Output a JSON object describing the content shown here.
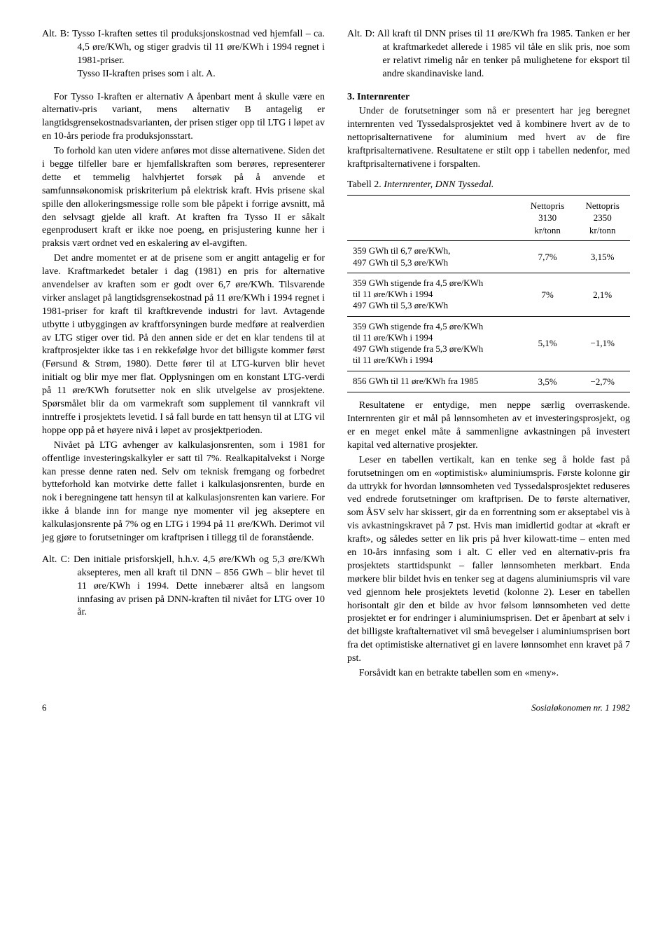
{
  "left": {
    "altB_l1": "Alt. B: Tysso I-kraften settes til produksjonskostnad ved hjemfall – ca. 4,5 øre/KWh, og stiger gradvis til 11 øre/KWh i 1994 regnet i 1981-priser.",
    "altB_l2": "Tysso II-kraften prises som i alt. A.",
    "p1": "For Tysso I-kraften er alternativ A åpenbart ment å skulle være en alternativ-pris variant, mens alternativ B antagelig er langtidsgrensekostnadsvarianten, der prisen stiger opp til LTG i løpet av en 10-års periode fra produksjonsstart.",
    "p2": "To forhold kan uten videre anføres mot disse alternativene. Siden det i begge tilfeller bare er hjemfallskraften som berøres, representerer dette et temmelig halvhjertet forsøk på å anvende et samfunnsøkonomisk priskriterium på elektrisk kraft. Hvis prisene skal spille den allokeringsmessige rolle som ble påpekt i forrige avsnitt, må den selvsagt gjelde all kraft. At kraften fra Tysso II er såkalt egenprodusert kraft er ikke noe poeng, en prisjustering kunne her i praksis vært ordnet ved en eskalering av el-avgiften.",
    "p3": "Det andre momentet er at de prisene som er angitt antagelig er for lave. Kraftmarkedet betaler i dag (1981) en pris for alternative anvendelser av kraften som er godt over 6,7 øre/KWh. Tilsvarende virker anslaget på langtidsgrensekostnad på 11 øre/KWh i 1994 regnet i 1981-priser for kraft til kraftkrevende industri for lavt. Avtagende utbytte i utbyggingen av kraftforsyningen burde medføre at realverdien av LTG stiger over tid. På den annen side er det en klar tendens til at kraftprosjekter ikke tas i en rekkefølge hvor det billigste kommer først (Førsund & Strøm, 1980). Dette fører til at LTG-kurven blir hevet initialt og blir mye mer flat. Opplysningen om en konstant LTG-verdi på 11 øre/KWh forutsetter nok en slik utvelgelse av prosjektene. Spørsmålet blir da om varmekraft som supplement til vannkraft vil inntreffe i prosjektets levetid. I så fall burde en tatt hensyn til at LTG vil hoppe opp på et høyere nivå i løpet av prosjektperioden.",
    "p4": "Nivået på LTG avhenger av kalkulasjonsrenten, som i 1981 for offentlige investeringskalkyler er satt til 7%. Realkapitalvekst i Norge kan presse denne raten ned. Selv om teknisk fremgang og forbedret bytteforhold kan motvirke dette fallet i kalkulasjonsrenten, burde en nok i beregningene tatt hensyn til at kalkulasjonsrenten kan variere. For ikke å blande inn for mange nye momenter vil jeg akseptere en kalkulasjonsrente på 7% og en LTG i 1994 på 11 øre/KWh. Derimot vil jeg gjøre to forutsetninger om kraftprisen i tillegg til de foranstående.",
    "altC": "Alt. C: Den initiale prisforskjell, h.h.v. 4,5 øre/KWh og 5,3 øre/KWh aksepteres, men all kraft til DNN – 856 GWh – blir hevet til 11 øre/KWh i 1994. Dette innebærer altså en langsom innfasing av prisen på DNN-kraften til nivået for LTG over 10 år."
  },
  "right": {
    "altD": "Alt. D: All kraft til DNN prises til 11 øre/KWh fra 1985. Tanken er her at kraftmarkedet allerede i 1985 vil tåle en slik pris, noe som er relativt rimelig når en tenker på mulighetene for eksport til andre skandinaviske land.",
    "h3": "3. Internrenter",
    "p1": "Under de forutsetninger som nå er presentert har jeg beregnet internrenten ved Tyssedalsprosjektet ved å kombinere hvert av de to nettoprisalternativene for aluminium med hvert av de fire kraftprisalternativene. Resultatene er stilt opp i tabellen nedenfor, med kraftprisalternativene i forspalten.",
    "table_caption_num": "Tabell 2.",
    "table_caption_title": "Internrenter, DNN Tyssedal.",
    "th_blank": "",
    "th_c1_l1": "Nettopris",
    "th_c1_l2": "3130",
    "th_c1_l3": "kr/tonn",
    "th_c2_l1": "Nettopris",
    "th_c2_l2": "2350",
    "th_c2_l3": "kr/tonn",
    "r1_d": "359 GWh til 6,7 øre/KWh,\n497 GWh til 5,3 øre/KWh",
    "r1_c1": "7,7%",
    "r1_c2": "3,15%",
    "r2_d": "359 GWh stigende fra 4,5 øre/KWh\n        til 11 øre/KWh i 1994\n497 GWh til 5,3 øre/KWh",
    "r2_c1": "7%",
    "r2_c2": "2,1%",
    "r3_d": "359 GWh stigende fra 4,5 øre/KWh\n        til 11 øre/KWh i 1994\n497 GWh stigende fra 5,3 øre/KWh\n        til 11 øre/KWh i 1994",
    "r3_c1": "5,1%",
    "r3_c2": "−1,1%",
    "r4_d": "856 GWh til 11 øre/KWh fra 1985",
    "r4_c1": "3,5%",
    "r4_c2": "−2,7%",
    "p2": "Resultatene er entydige, men neppe særlig overraskende. Internrenten gir et mål på lønnsomheten av et investeringsprosjekt, og er en meget enkel måte å sammenligne avkastningen på investert kapital ved alternative prosjekter.",
    "p3": "Leser en tabellen vertikalt, kan en tenke seg å holde fast på forutsetningen om en «optimistisk» aluminiumspris. Første kolonne gir da uttrykk for hvordan lønnsomheten ved Tyssedalsprosjektet reduseres ved endrede forutsetninger om kraftprisen. De to første alternativer, som ÅSV selv har skissert, gir da en forrentning som er akseptabel vis à vis avkastningskravet på 7 pst. Hvis man imidlertid godtar at «kraft er kraft», og således setter en lik pris på hver kilowatt-time – enten med en 10-års innfasing som i alt. C eller ved en alternativ-pris fra prosjektets starttidspunkt – faller lønnsomheten merkbart. Enda mørkere blir bildet hvis en tenker seg at dagens aluminiumspris vil vare ved gjennom hele prosjektets levetid (kolonne 2). Leser en tabellen horisontalt gir den et bilde av hvor følsom lønnsomheten ved dette prosjektet er for endringer i aluminiumsprisen. Det er åpenbart at selv i det billigste kraftalternativet vil små bevegelser i aluminiumsprisen bort fra det optimistiske alternativet gi en lavere lønnsomhet enn kravet på 7 pst.",
    "p4": "Forsåvidt kan en betrakte tabellen som en «meny»."
  },
  "footer": {
    "page": "6",
    "src": "Sosialøkonomen nr. 1 1982"
  }
}
